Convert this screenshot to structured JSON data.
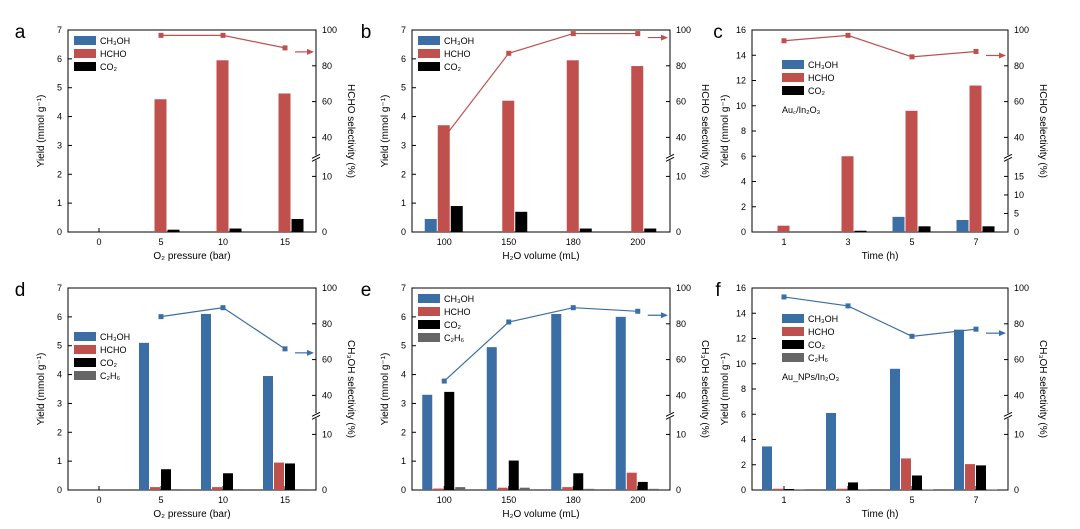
{
  "chart_data": [
    {
      "panel": "a",
      "type": "bar",
      "categories": [
        "0",
        "5",
        "10",
        "15"
      ],
      "xlabel": "O₂ pressure (bar)",
      "ylabel": "Yield (mmol g⁻¹)",
      "ylim": [
        0,
        7
      ],
      "yticks": [
        "0",
        "1",
        "2",
        "3",
        "4",
        "5",
        "6",
        "7"
      ],
      "y2label": "HCHO selectivity (%)",
      "y2ticks_low": [
        "0",
        "10"
      ],
      "y2ticks_high": [
        "40",
        "60",
        "80",
        "100"
      ],
      "series": [
        {
          "name": "CH₃OH",
          "color": "#3a6ea5",
          "values": [
            0,
            0,
            0,
            0
          ]
        },
        {
          "name": "HCHO",
          "color": "#c0504d",
          "values": [
            0,
            4.6,
            5.95,
            4.8
          ]
        },
        {
          "name": "CO₂",
          "color": "#000000",
          "values": [
            0,
            0.08,
            0.12,
            0.45
          ]
        }
      ],
      "selectivity": {
        "color": "#c0504d",
        "values": [
          null,
          97,
          97,
          90
        ]
      },
      "annotation": ""
    },
    {
      "panel": "b",
      "type": "bar",
      "categories": [
        "100",
        "150",
        "180",
        "200"
      ],
      "xlabel": "H₂O volume (mL)",
      "ylabel": "Yield (mmol g⁻¹)",
      "ylim": [
        0,
        7
      ],
      "yticks": [
        "0",
        "1",
        "2",
        "3",
        "4",
        "5",
        "6",
        "7"
      ],
      "y2label": "HCHO selectivity (%)",
      "y2ticks_low": [
        "0",
        "10"
      ],
      "y2ticks_high": [
        "40",
        "60",
        "80",
        "100"
      ],
      "series": [
        {
          "name": "CH₃OH",
          "color": "#3a6ea5",
          "values": [
            0.45,
            0,
            0,
            0
          ]
        },
        {
          "name": "HCHO",
          "color": "#c0504d",
          "values": [
            3.7,
            4.55,
            5.95,
            5.75
          ]
        },
        {
          "name": "CO₂",
          "color": "#000000",
          "values": [
            0.9,
            0.7,
            0.12,
            0.12
          ]
        }
      ],
      "selectivity": {
        "color": "#c0504d",
        "values": [
          40,
          87,
          98,
          98
        ]
      },
      "annotation": ""
    },
    {
      "panel": "c",
      "type": "bar",
      "categories": [
        "1",
        "3",
        "5",
        "7"
      ],
      "xlabel": "Time (h)",
      "ylabel": "Yield (mmol g⁻¹)",
      "ylim": [
        0,
        16
      ],
      "yticks": [
        "0",
        "2",
        "4",
        "6",
        "8",
        "10",
        "12",
        "14",
        "16"
      ],
      "y2label": "HCHO selectivity (%)",
      "y2ticks_low": [
        "0",
        "5",
        "10",
        "15"
      ],
      "y2ticks_high": [
        "40",
        "60",
        "80",
        "100"
      ],
      "series": [
        {
          "name": "CH₃OH",
          "color": "#3a6ea5",
          "values": [
            0,
            0,
            1.2,
            0.95
          ]
        },
        {
          "name": "HCHO",
          "color": "#c0504d",
          "values": [
            0.5,
            6.0,
            9.6,
            11.6
          ]
        },
        {
          "name": "CO₂",
          "color": "#000000",
          "values": [
            0,
            0.1,
            0.45,
            0.45
          ]
        }
      ],
      "selectivity": {
        "color": "#c0504d",
        "values": [
          94,
          97,
          85,
          88
        ]
      },
      "annotation": "Au꜀/In₂O₃"
    },
    {
      "panel": "d",
      "type": "bar",
      "categories": [
        "0",
        "5",
        "10",
        "15"
      ],
      "xlabel": "O₂ pressure (bar)",
      "ylabel": "Yield (mmol g⁻¹)",
      "ylim": [
        0,
        7
      ],
      "yticks": [
        "0",
        "1",
        "2",
        "3",
        "4",
        "5",
        "6",
        "7"
      ],
      "y2label": "CH₃OH selectivity (%)",
      "y2ticks_low": [
        "0",
        "10"
      ],
      "y2ticks_high": [
        "40",
        "60",
        "80",
        "100"
      ],
      "series": [
        {
          "name": "CH₃OH",
          "color": "#3a6ea5",
          "values": [
            0,
            5.1,
            6.1,
            3.95
          ]
        },
        {
          "name": "HCHO",
          "color": "#c0504d",
          "values": [
            0,
            0.1,
            0.1,
            0.95
          ]
        },
        {
          "name": "CO₂",
          "color": "#000000",
          "values": [
            0,
            0.72,
            0.58,
            0.92
          ]
        },
        {
          "name": "C₂H₆",
          "color": "#666666",
          "values": [
            0,
            0.03,
            0.03,
            0.03
          ]
        }
      ],
      "selectivity": {
        "color": "#3a6ea5",
        "values": [
          null,
          84,
          89,
          66
        ]
      },
      "annotation": ""
    },
    {
      "panel": "e",
      "type": "bar",
      "categories": [
        "100",
        "150",
        "180",
        "200"
      ],
      "xlabel": "H₂O volume (mL)",
      "ylabel": "Yield (mmol g⁻¹)",
      "ylim": [
        0,
        7
      ],
      "yticks": [
        "0",
        "1",
        "2",
        "3",
        "4",
        "5",
        "6",
        "7"
      ],
      "y2label": "CH₃OH selectivity (%)",
      "y2ticks_low": [
        "0",
        "10"
      ],
      "y2ticks_high": [
        "40",
        "60",
        "80",
        "100"
      ],
      "series": [
        {
          "name": "CH₃OH",
          "color": "#3a6ea5",
          "values": [
            3.3,
            4.95,
            6.1,
            6.0
          ]
        },
        {
          "name": "HCHO",
          "color": "#c0504d",
          "values": [
            0.05,
            0.08,
            0.1,
            0.6
          ]
        },
        {
          "name": "CO₂",
          "color": "#000000",
          "values": [
            3.4,
            1.02,
            0.58,
            0.28
          ]
        },
        {
          "name": "C₂H₆",
          "color": "#666666",
          "values": [
            0.1,
            0.08,
            0.04,
            0.04
          ]
        }
      ],
      "selectivity": {
        "color": "#3a6ea5",
        "values": [
          48,
          81,
          89,
          87
        ]
      },
      "annotation": ""
    },
    {
      "panel": "f",
      "type": "bar",
      "categories": [
        "1",
        "3",
        "5",
        "7"
      ],
      "xlabel": "Time (h)",
      "ylabel": "Yield (mmol g⁻¹)",
      "ylim": [
        0,
        16
      ],
      "yticks": [
        "0",
        "2",
        "4",
        "6",
        "8",
        "10",
        "12",
        "14",
        "16"
      ],
      "y2label": "CH₃OH selectivity (%)",
      "y2ticks_low": [
        "0",
        "10"
      ],
      "y2ticks_high": [
        "40",
        "60",
        "80",
        "100"
      ],
      "series": [
        {
          "name": "CH₃OH",
          "color": "#3a6ea5",
          "values": [
            3.45,
            6.1,
            9.6,
            12.7
          ]
        },
        {
          "name": "HCHO",
          "color": "#c0504d",
          "values": [
            0.1,
            0.1,
            2.5,
            2.05
          ]
        },
        {
          "name": "CO₂",
          "color": "#000000",
          "values": [
            0.08,
            0.6,
            1.15,
            1.95
          ]
        },
        {
          "name": "C₂H₆",
          "color": "#666666",
          "values": [
            0.02,
            0.02,
            0.03,
            0.03
          ]
        }
      ],
      "selectivity": {
        "color": "#3a6ea5",
        "values": [
          95,
          90,
          73,
          77
        ]
      },
      "annotation": "Au_NPs/In₂O₃"
    }
  ]
}
